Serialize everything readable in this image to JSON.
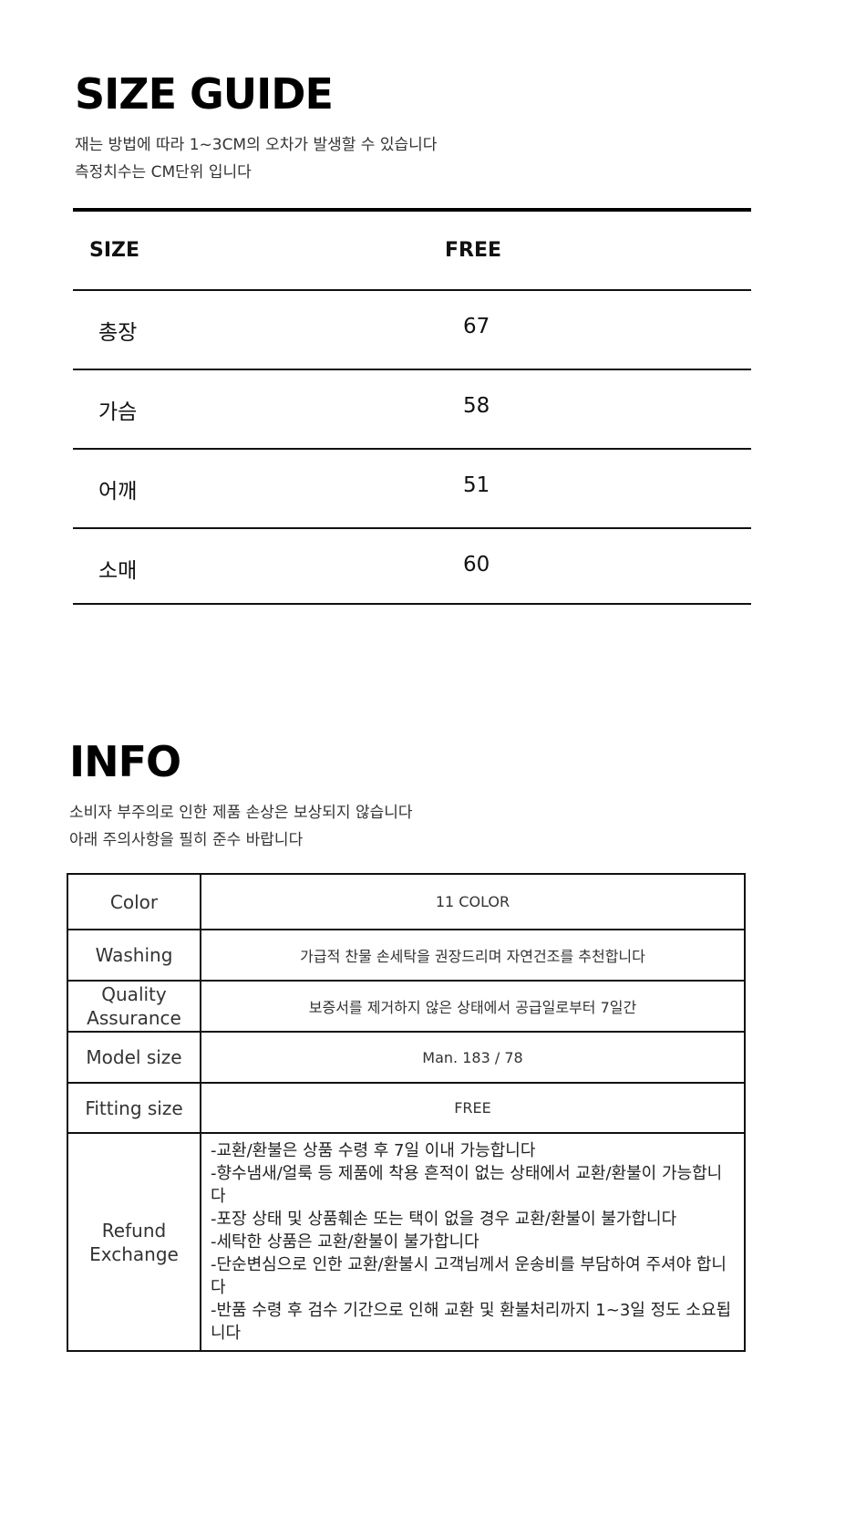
{
  "size_guide": {
    "title": "SIZE GUIDE",
    "notes": [
      "재는 방법에 따라 1~3CM의 오차가 발생할 수 있습니다",
      "측정치수는 CM단위 입니다"
    ],
    "header": {
      "label": "SIZE",
      "value": "FREE"
    },
    "rows": [
      {
        "label": "총장",
        "value": "67"
      },
      {
        "label": "가슴",
        "value": "58"
      },
      {
        "label": "어깨",
        "value": "51"
      },
      {
        "label": "소매",
        "value": "60"
      }
    ]
  },
  "info": {
    "title": "INFO",
    "notes": [
      "소비자 부주의로 인한 제품 손상은 보상되지 않습니다",
      "아래 주의사항을 필히 준수 바랍니다"
    ],
    "rows": [
      {
        "label": "Color",
        "value": "11 COLOR"
      },
      {
        "label": "Washing",
        "value": "가급적 찬물 손세탁을 권장드리며 자연건조를 추천합니다"
      },
      {
        "label": "Quality Assurance",
        "value": "보증서를 제거하지 않은 상태에서 공급일로부터 7일간"
      },
      {
        "label": "Model size",
        "value": "Man. 183 / 78"
      },
      {
        "label": "Fitting size",
        "value": "FREE"
      }
    ],
    "refund": {
      "label_lines": [
        "Refund",
        "Exchange"
      ],
      "items": [
        "-교환/환불은 상품 수령 후 7일 이내 가능합니다",
        "-향수냄새/얼룩 등 제품에 착용 흔적이 없는 상태에서 교환/환불이 가능합니다",
        "-포장 상태 및 상품훼손 또는 택이 없을 경우 교환/환불이 불가합니다",
        "-세탁한 상품은 교환/환불이 불가합니다",
        "-단순변심으로 인한 교환/환불시 고객님께서 운송비를 부담하여 주셔야 합니다",
        "-반품 수령 후 검수 기간으로 인해 교환 및 환불처리까지 1~3일 정도 소요됩니다"
      ]
    }
  }
}
